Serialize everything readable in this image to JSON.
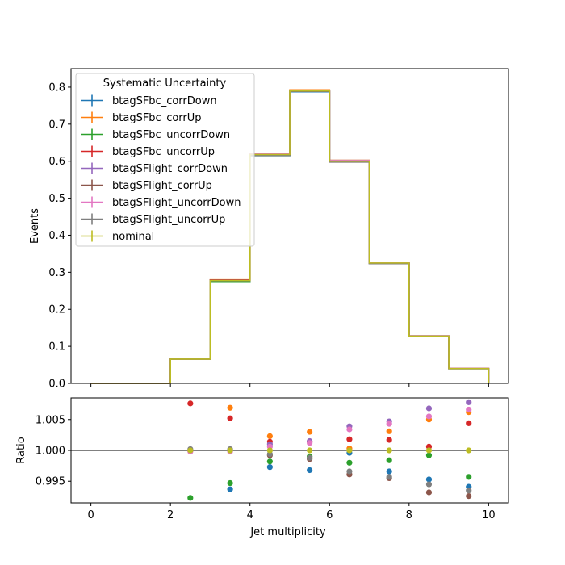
{
  "chart_data": [
    {
      "type": "line",
      "drawstyle": "steps",
      "ylabel": "Events",
      "xlim": [
        -0.5,
        10.5
      ],
      "ylim": [
        0,
        0.85
      ],
      "yticks": [
        0.0,
        0.1,
        0.2,
        0.3,
        0.4,
        0.5,
        0.6,
        0.7,
        0.8
      ],
      "ytick_labels": [
        "0.0",
        "0.1",
        "0.2",
        "0.3",
        "0.4",
        "0.5",
        "0.6",
        "0.7",
        "0.8"
      ],
      "bin_edges": [
        0,
        1,
        2,
        3,
        4,
        5,
        6,
        7,
        8,
        9,
        10
      ],
      "legend": {
        "title": "Systematic Uncertainty",
        "placement": "upper-left",
        "entries": [
          "btagSFbc_corrDown",
          "btagSFbc_corrUp",
          "btagSFbc_uncorrDown",
          "btagSFbc_uncorrUp",
          "btagSFlight_corrDown",
          "btagSFlight_corrUp",
          "btagSFlight_uncorrDown",
          "btagSFlight_uncorrUp",
          "nominal"
        ]
      },
      "series": [
        {
          "name": "btagSFbc_corrDown",
          "color": "#1f77b4",
          "values": [
            0,
            0,
            0.0655,
            0.2752,
            0.6151,
            0.7875,
            0.5997,
            0.3236,
            0.127,
            0.0397
          ]
        },
        {
          "name": "btagSFbc_corrUp",
          "color": "#ff7f0e",
          "values": [
            0,
            0,
            0.0655,
            0.2798,
            0.6204,
            0.7928,
            0.6025,
            0.3263,
            0.1282,
            0.0402
          ]
        },
        {
          "name": "btagSFbc_uncorrDown",
          "color": "#2ca02c",
          "values": [
            0,
            0,
            0.065,
            0.2754,
            0.6155,
            0.7892,
            0.5987,
            0.3245,
            0.1275,
            0.0398
          ]
        },
        {
          "name": "btagSFbc_uncorrUp",
          "color": "#d62728",
          "values": [
            0,
            0,
            0.066,
            0.2793,
            0.6198,
            0.7912,
            0.6018,
            0.3259,
            0.1277,
            0.0402
          ]
        },
        {
          "name": "btagSFlight_corrDown",
          "color": "#9467bd",
          "values": [
            0,
            0,
            0.0655,
            0.2779,
            0.6196,
            0.7912,
            0.6023,
            0.3265,
            0.1285,
            0.0403
          ]
        },
        {
          "name": "btagSFlight_corrUp",
          "color": "#8c564b",
          "values": [
            0,
            0,
            0.0655,
            0.2779,
            0.6158,
            0.7888,
            0.5975,
            0.3235,
            0.1267,
            0.0397
          ]
        },
        {
          "name": "btagSFlight_uncorrDown",
          "color": "#e377c2",
          "values": [
            0,
            0,
            0.0655,
            0.2778,
            0.6196,
            0.7911,
            0.602,
            0.3264,
            0.1283,
            0.0403
          ]
        },
        {
          "name": "btagSFlight_uncorrUp",
          "color": "#7f7f7f",
          "values": [
            0,
            0,
            0.0655,
            0.2779,
            0.6159,
            0.789,
            0.5979,
            0.3235,
            0.127,
            0.0397
          ]
        },
        {
          "name": "nominal",
          "color": "#bcbd22",
          "values": [
            0,
            0,
            0.0655,
            0.2779,
            0.618,
            0.79,
            0.6,
            0.325,
            0.1277,
            0.0399
          ]
        }
      ]
    },
    {
      "type": "scatter",
      "xlabel": "Jet multiplicity",
      "ylabel": "Ratio",
      "xlim": [
        -0.5,
        10.5
      ],
      "ylim": [
        0.9915,
        1.0085
      ],
      "xticks": [
        0,
        2,
        4,
        6,
        8,
        10
      ],
      "xtick_labels": [
        "0",
        "2",
        "4",
        "6",
        "8",
        "10"
      ],
      "yticks": [
        0.995,
        1.0,
        1.005
      ],
      "ytick_labels": [
        "0.995",
        "1.000",
        "1.005"
      ],
      "reference_line": 1.0,
      "x": [
        2.5,
        3.5,
        4.5,
        5.5,
        6.5,
        7.5,
        8.5,
        9.5
      ],
      "series": [
        {
          "name": "btagSFbc_corrDown",
          "color": "#1f77b4",
          "values": [
            1.0,
            0.9937,
            0.9973,
            0.9968,
            0.9996,
            0.9966,
            0.9953,
            0.9941
          ]
        },
        {
          "name": "btagSFbc_corrUp",
          "color": "#ff7f0e",
          "values": [
            1.0,
            1.0069,
            1.0023,
            1.003,
            1.0003,
            1.0031,
            1.005,
            1.0062
          ]
        },
        {
          "name": "btagSFbc_uncorrDown",
          "color": "#2ca02c",
          "values": [
            0.9923,
            0.9947,
            0.9982,
            0.999,
            0.998,
            0.9984,
            0.9992,
            0.9957
          ]
        },
        {
          "name": "btagSFbc_uncorrUp",
          "color": "#d62728",
          "values": [
            1.0076,
            1.0052,
            1.0014,
            1.0014,
            1.0018,
            1.0017,
            1.0006,
            1.0044
          ]
        },
        {
          "name": "btagSFlight_corrDown",
          "color": "#9467bd",
          "values": [
            1.0,
            1.0,
            1.001,
            1.0015,
            1.0039,
            1.0047,
            1.0068,
            1.0078
          ]
        },
        {
          "name": "btagSFlight_corrUp",
          "color": "#8c564b",
          "values": [
            1.0,
            1.0,
            0.9992,
            0.9986,
            0.9961,
            0.9955,
            0.9932,
            0.9926
          ]
        },
        {
          "name": "btagSFlight_uncorrDown",
          "color": "#e377c2",
          "values": [
            0.9998,
            0.9998,
            1.0006,
            1.0012,
            1.0034,
            1.0043,
            1.0055,
            1.0066
          ]
        },
        {
          "name": "btagSFlight_uncorrUp",
          "color": "#7f7f7f",
          "values": [
            1.0002,
            1.0002,
            0.9994,
            0.9988,
            0.9966,
            0.9957,
            0.9945,
            0.9935
          ]
        },
        {
          "name": "nominal",
          "color": "#bcbd22",
          "values": [
            1.0,
            1.0,
            1.0,
            1.0,
            1.0,
            1.0,
            1.0,
            1.0
          ]
        }
      ]
    }
  ]
}
